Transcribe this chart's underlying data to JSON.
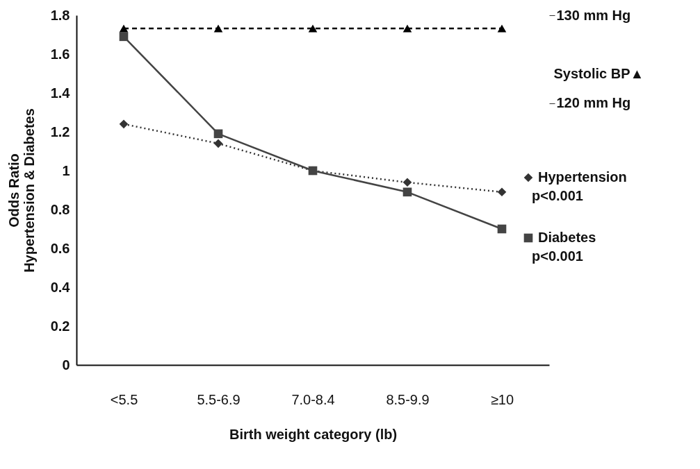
{
  "chart_data": {
    "type": "line",
    "xlabel": "Birth weight category (lb)",
    "ylabel": "Odds Ratio\nHypertension & Diabetes",
    "y2label": "Systolic BP▲",
    "categories": [
      "<5.5",
      "5.5-6.9",
      "7.0-8.4",
      "8.5-9.9",
      "≥10"
    ],
    "series": [
      {
        "name": "Hypertension",
        "color": "#333333",
        "values": [
          1.24,
          1.14,
          1.0,
          0.94,
          0.89
        ],
        "marker": "diamond",
        "line_style": "dotted"
      },
      {
        "name": "Diabetes",
        "color": "#444444",
        "values": [
          1.69,
          1.19,
          1.0,
          0.89,
          0.7
        ],
        "marker": "square",
        "line_style": "solid"
      },
      {
        "color": "#000000",
        "values": [
          128.5,
          128.5,
          128.5,
          128.5,
          128.5
        ],
        "marker": "triangle",
        "line_style": "dashed",
        "axis": "y2"
      }
    ],
    "ylim": [
      0,
      1.8
    ],
    "yticks": [
      0,
      0.2,
      0.4,
      0.6,
      0.8,
      1,
      1.2,
      1.4,
      1.6,
      1.8
    ],
    "y2lim": [
      90.3,
      130
    ],
    "y2ticks": [
      {
        "value": 120,
        "label": "120 mm Hg"
      },
      {
        "value": 130,
        "label": "130 mm Hg"
      }
    ],
    "annotations": [
      "p<0.001",
      "p<0.001"
    ],
    "legend": "right",
    "grid": false
  }
}
